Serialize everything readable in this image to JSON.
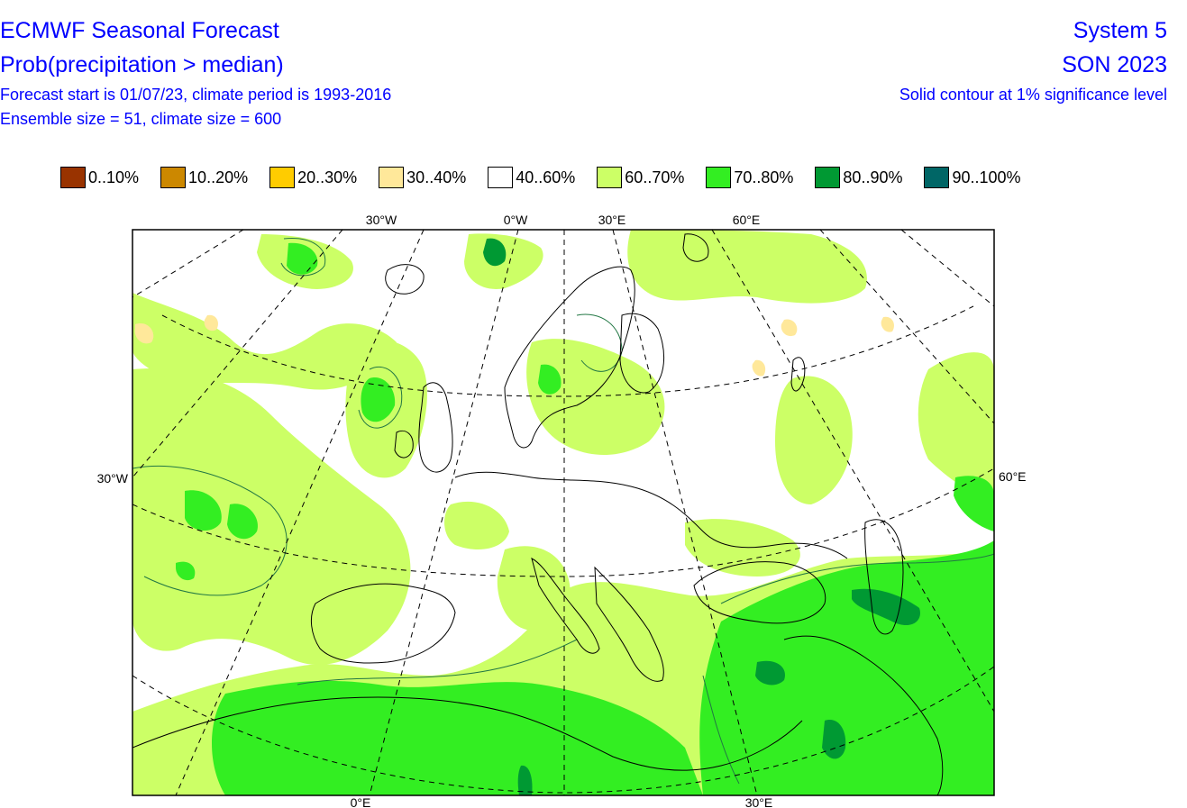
{
  "header": {
    "title": "ECMWF Seasonal Forecast",
    "subtitle": "Prob(precipitation > median)",
    "line3": "Forecast start is 01/07/23, climate period is 1993-2016",
    "line4": "Ensemble size = 51, climate size = 600",
    "system": "System 5",
    "season": "SON 2023",
    "significance": "Solid contour at 1% significance level"
  },
  "legend": [
    {
      "label": "0..10%",
      "color": "#993300"
    },
    {
      "label": "10..20%",
      "color": "#cc8800"
    },
    {
      "label": "20..30%",
      "color": "#ffcc00"
    },
    {
      "label": "30..40%",
      "color": "#ffe89a"
    },
    {
      "label": "40..60%",
      "color": "#ffffff"
    },
    {
      "label": "60..70%",
      "color": "#ccff66"
    },
    {
      "label": "70..80%",
      "color": "#33ee22"
    },
    {
      "label": "80..90%",
      "color": "#009933"
    },
    {
      "label": "90..100%",
      "color": "#006666"
    }
  ],
  "map": {
    "top_labels": [
      "30°W",
      "0°W",
      "30°E",
      "60°E"
    ],
    "left_label": "30°W",
    "right_label": "60°E",
    "bottom_labels": [
      "0°E",
      "30°E"
    ]
  }
}
